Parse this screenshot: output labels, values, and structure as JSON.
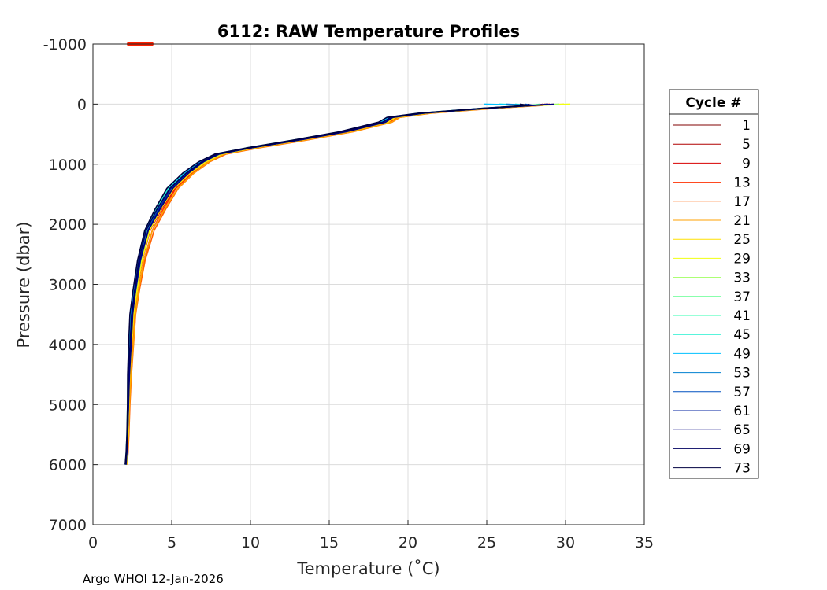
{
  "chart_data": {
    "type": "line",
    "title": "6112: RAW Temperature Profiles",
    "xlabel": "Temperature (˚C)",
    "ylabel": "Pressure (dbar)",
    "xlim": [
      0,
      35
    ],
    "ylim": [
      -1000,
      7000
    ],
    "y_reversed": true,
    "grid": true,
    "x_ticks": [
      0,
      5,
      10,
      15,
      20,
      25,
      30,
      35
    ],
    "y_ticks": [
      -1000,
      0,
      1000,
      2000,
      3000,
      4000,
      5000,
      6000,
      7000
    ],
    "legend": {
      "title": "Cycle #",
      "placement": "outside-right",
      "entries": [
        "1",
        "5",
        "9",
        "13",
        "17",
        "21",
        "25",
        "29",
        "33",
        "37",
        "41",
        "45",
        "49",
        "53",
        "57",
        "61",
        "65",
        "69",
        "73"
      ],
      "colors": [
        "#800000",
        "#b00000",
        "#d80000",
        "#ff3000",
        "#ff6000",
        "#ffa000",
        "#ffe000",
        "#f0ff10",
        "#a0ff60",
        "#60ff90",
        "#30ffb0",
        "#20f0d0",
        "#00c0ff",
        "#0080d0",
        "#0050c0",
        "#0020a0",
        "#000080",
        "#000060",
        "#000040"
      ]
    },
    "reference_marker": {
      "label": "surface position marker",
      "color": "#ff2000",
      "x": [
        2.3,
        3.7
      ],
      "y": [
        -1000,
        -1000
      ]
    },
    "profile_shape": {
      "temperature": [
        29.5,
        28.0,
        25.0,
        21.0,
        19.0,
        18.5,
        16.0,
        13.0,
        10.0,
        8.0,
        7.0,
        6.0,
        5.0,
        4.2,
        3.5,
        3.0,
        2.7,
        2.5,
        2.4,
        2.3,
        2.25,
        2.2,
        2.15,
        2.1
      ],
      "pressure": [
        0,
        20,
        70,
        150,
        220,
        300,
        460,
        600,
        730,
        830,
        960,
        1150,
        1400,
        1750,
        2100,
        2600,
        3100,
        3500,
        4000,
        4500,
        5000,
        5500,
        5800,
        6000
      ]
    },
    "series": [
      {
        "name": "1",
        "color": "#800000",
        "t_offset": 0.1,
        "surface_t": 28.6
      },
      {
        "name": "5",
        "color": "#b00000",
        "t_offset": 0.15,
        "surface_t": 28.8
      },
      {
        "name": "9",
        "color": "#d80000",
        "t_offset": 0.25,
        "surface_t": 29.0
      },
      {
        "name": "13",
        "color": "#ff3000",
        "t_offset": 0.4,
        "surface_t": 28.7
      },
      {
        "name": "17",
        "color": "#ff6000",
        "t_offset": 0.55,
        "surface_t": 28.5
      },
      {
        "name": "21",
        "color": "#ffa000",
        "t_offset": 0.45,
        "surface_t": 29.3
      },
      {
        "name": "25",
        "color": "#ffe000",
        "t_offset": 0.2,
        "surface_t": 29.9
      },
      {
        "name": "29",
        "color": "#f0ff10",
        "t_offset": 0.1,
        "surface_t": 30.3
      },
      {
        "name": "33",
        "color": "#a0ff60",
        "t_offset": -0.1,
        "surface_t": 29.6
      },
      {
        "name": "37",
        "color": "#60ff90",
        "t_offset": -0.2,
        "surface_t": 28.4
      },
      {
        "name": "41",
        "color": "#30ffb0",
        "t_offset": -0.3,
        "surface_t": 26.8
      },
      {
        "name": "45",
        "color": "#20f0d0",
        "t_offset": -0.25,
        "surface_t": 25.8
      },
      {
        "name": "49",
        "color": "#00c0ff",
        "t_offset": -0.2,
        "surface_t": 24.8
      },
      {
        "name": "53",
        "color": "#0080d0",
        "t_offset": -0.1,
        "surface_t": 26.2
      },
      {
        "name": "57",
        "color": "#0050c0",
        "t_offset": 0.0,
        "surface_t": 27.4
      },
      {
        "name": "61",
        "color": "#0020a0",
        "t_offset": -0.05,
        "surface_t": 28.9
      },
      {
        "name": "65",
        "color": "#000080",
        "t_offset": 0.05,
        "surface_t": 29.3
      },
      {
        "name": "69",
        "color": "#000060",
        "t_offset": -0.15,
        "surface_t": 27.6
      },
      {
        "name": "73",
        "color": "#000040",
        "t_offset": -0.35,
        "surface_t": 27.1
      }
    ]
  },
  "footer": {
    "text": "Argo WHOI 12-Jan-2026"
  }
}
